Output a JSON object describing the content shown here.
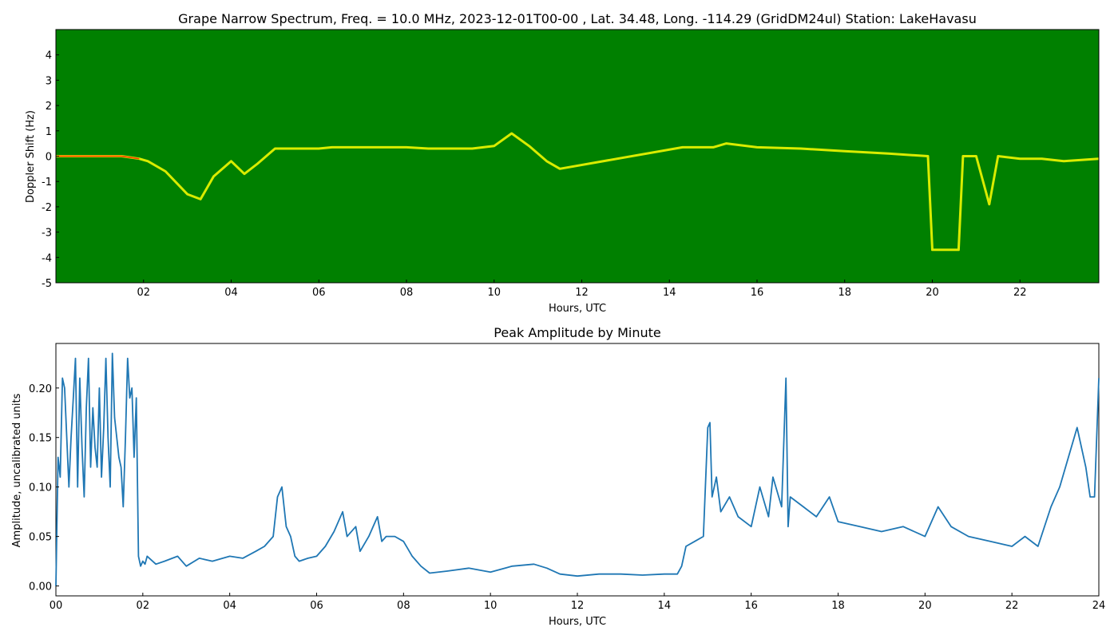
{
  "chart_data": [
    {
      "type": "heatmap",
      "title": "Grape Narrow Spectrum, Freq. = 10.0 MHz, 2023-12-01T00-00 , Lat.  34.48, Long. -114.29 (GridDM24ul) Station: LakeHavasu",
      "xlabel": "Hours, UTC",
      "ylabel": "Doppler Shift (Hz)",
      "xlim": [
        0,
        23.8
      ],
      "ylim": [
        -5,
        5
      ],
      "xticks": [
        "02",
        "04",
        "06",
        "08",
        "10",
        "12",
        "14",
        "16",
        "18",
        "20",
        "22"
      ],
      "xtick_values": [
        2,
        4,
        6,
        8,
        10,
        12,
        14,
        16,
        18,
        20,
        22
      ],
      "yticks": [
        "4",
        "3",
        "2",
        "1",
        "0",
        "-1",
        "-2",
        "-3",
        "-4",
        "-5"
      ],
      "ytick_values": [
        4,
        3,
        2,
        1,
        0,
        -1,
        -2,
        -3,
        -4,
        -5
      ],
      "colors": {
        "background": "#008000",
        "trace": "#ffff00",
        "peak": "#ff3300"
      },
      "doppler_trace": {
        "x": [
          0,
          0.5,
          1,
          1.5,
          1.9,
          2.1,
          2.5,
          3,
          3.3,
          3.6,
          4,
          4.3,
          4.6,
          5,
          5.5,
          6,
          6.3,
          6.6,
          7,
          7.5,
          8,
          8.5,
          9,
          9.5,
          10,
          10.4,
          10.8,
          11.2,
          11.5,
          14.3,
          15,
          15.3,
          16,
          17,
          18,
          19,
          19.9,
          20,
          20.6,
          20.7,
          21,
          21.3,
          21.5,
          22,
          22.5,
          23,
          23.8
        ],
        "y": [
          0,
          0,
          0,
          0,
          -0.1,
          -0.2,
          -0.6,
          -1.5,
          -1.7,
          -0.8,
          -0.2,
          -0.7,
          -0.3,
          0.3,
          0.3,
          0.3,
          0.35,
          0.35,
          0.35,
          0.35,
          0.35,
          0.3,
          0.3,
          0.3,
          0.4,
          0.9,
          0.4,
          -0.2,
          -0.5,
          0.35,
          0.35,
          0.5,
          0.35,
          0.3,
          0.2,
          0.1,
          0,
          -3.7,
          -3.7,
          0,
          0,
          -1.9,
          0,
          -0.1,
          -0.1,
          -0.2,
          -0.1
        ]
      }
    },
    {
      "type": "line",
      "title": "Peak Amplitude by Minute",
      "xlabel": "Hours, UTC",
      "ylabel": "Amplitude, uncalibrated units",
      "xlim": [
        0,
        24
      ],
      "ylim": [
        -0.01,
        0.245
      ],
      "xticks": [
        "00",
        "02",
        "04",
        "06",
        "08",
        "10",
        "12",
        "14",
        "16",
        "18",
        "20",
        "22",
        "24"
      ],
      "xtick_values": [
        0,
        2,
        4,
        6,
        8,
        10,
        12,
        14,
        16,
        18,
        20,
        22,
        24
      ],
      "yticks": [
        "0.00",
        "0.05",
        "0.10",
        "0.15",
        "0.20"
      ],
      "ytick_values": [
        0,
        0.05,
        0.1,
        0.15,
        0.2
      ],
      "series": [
        {
          "color": "#1f77b4",
          "x": [
            0,
            0.05,
            0.1,
            0.15,
            0.2,
            0.3,
            0.35,
            0.4,
            0.45,
            0.5,
            0.55,
            0.6,
            0.65,
            0.7,
            0.75,
            0.8,
            0.85,
            0.9,
            0.95,
            1.0,
            1.05,
            1.1,
            1.15,
            1.2,
            1.25,
            1.3,
            1.35,
            1.4,
            1.45,
            1.5,
            1.55,
            1.6,
            1.65,
            1.7,
            1.75,
            1.8,
            1.85,
            1.9,
            1.95,
            2.0,
            2.05,
            2.1,
            2.3,
            2.5,
            2.8,
            3.0,
            3.3,
            3.6,
            4.0,
            4.3,
            4.6,
            4.8,
            5.0,
            5.1,
            5.2,
            5.3,
            5.4,
            5.5,
            5.6,
            5.8,
            6.0,
            6.2,
            6.4,
            6.6,
            6.7,
            6.9,
            7.0,
            7.2,
            7.4,
            7.5,
            7.6,
            7.8,
            8.0,
            8.2,
            8.4,
            8.6,
            9.0,
            9.5,
            10.0,
            10.5,
            11.0,
            11.3,
            11.6,
            12.0,
            12.5,
            13.0,
            13.5,
            14.0,
            14.3,
            14.4,
            14.5,
            14.7,
            14.9,
            15.0,
            15.05,
            15.1,
            15.2,
            15.3,
            15.5,
            15.7,
            16.0,
            16.2,
            16.4,
            16.5,
            16.7,
            16.8,
            16.85,
            16.9,
            17.2,
            17.5,
            17.8,
            18.0,
            18.5,
            19.0,
            19.5,
            20.0,
            20.3,
            20.6,
            21.0,
            21.5,
            22.0,
            22.3,
            22.6,
            22.9,
            23.1,
            23.3,
            23.5,
            23.7,
            23.8,
            23.9,
            24.0
          ],
          "y": [
            0.0,
            0.13,
            0.11,
            0.21,
            0.2,
            0.1,
            0.15,
            0.19,
            0.23,
            0.1,
            0.21,
            0.14,
            0.09,
            0.18,
            0.23,
            0.12,
            0.18,
            0.14,
            0.12,
            0.2,
            0.11,
            0.16,
            0.23,
            0.15,
            0.1,
            0.235,
            0.17,
            0.15,
            0.13,
            0.12,
            0.08,
            0.15,
            0.23,
            0.19,
            0.2,
            0.13,
            0.19,
            0.03,
            0.02,
            0.025,
            0.022,
            0.03,
            0.022,
            0.025,
            0.03,
            0.02,
            0.028,
            0.025,
            0.03,
            0.028,
            0.035,
            0.04,
            0.05,
            0.09,
            0.1,
            0.06,
            0.05,
            0.03,
            0.025,
            0.028,
            0.03,
            0.04,
            0.055,
            0.075,
            0.05,
            0.06,
            0.035,
            0.05,
            0.07,
            0.045,
            0.05,
            0.05,
            0.045,
            0.03,
            0.02,
            0.013,
            0.015,
            0.018,
            0.014,
            0.02,
            0.022,
            0.018,
            0.012,
            0.01,
            0.012,
            0.012,
            0.011,
            0.012,
            0.012,
            0.02,
            0.04,
            0.045,
            0.05,
            0.16,
            0.165,
            0.09,
            0.11,
            0.075,
            0.09,
            0.07,
            0.06,
            0.1,
            0.07,
            0.11,
            0.08,
            0.21,
            0.06,
            0.09,
            0.08,
            0.07,
            0.09,
            0.065,
            0.06,
            0.055,
            0.06,
            0.05,
            0.08,
            0.06,
            0.05,
            0.045,
            0.04,
            0.05,
            0.04,
            0.08,
            0.1,
            0.13,
            0.16,
            0.12,
            0.09,
            0.09,
            0.21
          ]
        }
      ]
    }
  ]
}
